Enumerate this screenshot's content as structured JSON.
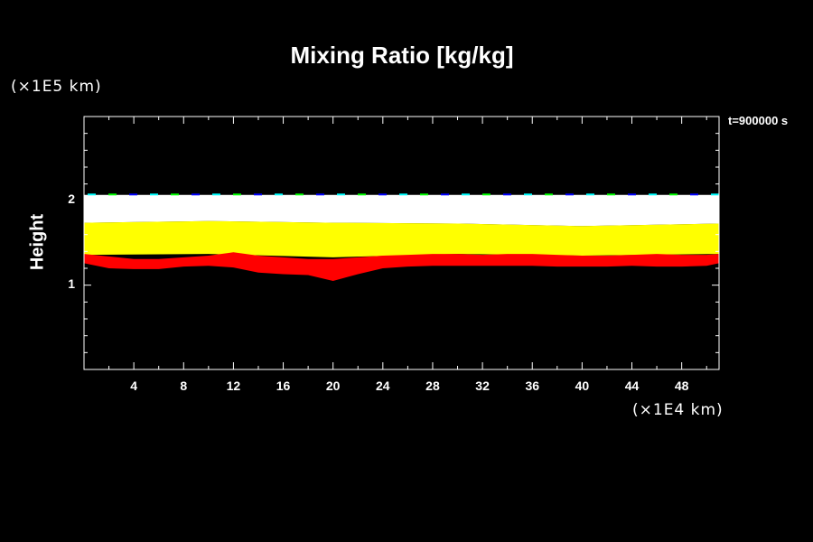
{
  "chart_data": {
    "type": "heatmap",
    "title": "Mixing Ratio [kg/kg]",
    "ylabel": "Height",
    "y_unit_label": "(×1E5 km)",
    "x_unit_label": "(×1E4 km)",
    "time_label": "t=900000 s",
    "xlim": [
      0,
      51
    ],
    "ylim": [
      0,
      3
    ],
    "x_ticks": [
      4,
      8,
      12,
      16,
      20,
      24,
      28,
      32,
      36,
      40,
      44,
      48
    ],
    "y_ticks": [
      1,
      2
    ],
    "x_minor_step": 2,
    "y_minor_step": 0.2,
    "colors": {
      "background": "#000000",
      "white_band": "#ffffff",
      "yellow_band": "#ffff00",
      "red_band": "#ff0000",
      "top_fringe": [
        "#00ffff",
        "#00ff00",
        "#0000ff"
      ]
    },
    "bands": [
      {
        "color": "white_band",
        "x": [
          0,
          10,
          20,
          30,
          40,
          51
        ],
        "top": [
          2.07,
          2.07,
          2.07,
          2.07,
          2.07,
          2.07
        ],
        "bottom": [
          1.74,
          1.76,
          1.74,
          1.73,
          1.7,
          1.73
        ]
      },
      {
        "color": "yellow_band",
        "x": [
          0,
          10,
          20,
          30,
          40,
          51
        ],
        "top": [
          1.74,
          1.76,
          1.74,
          1.73,
          1.7,
          1.73
        ],
        "bottom": [
          1.36,
          1.37,
          1.33,
          1.37,
          1.35,
          1.37
        ]
      },
      {
        "color": "red_band",
        "x": [
          0,
          2,
          4,
          6,
          8,
          10,
          12,
          14,
          16,
          18,
          20,
          22,
          24,
          26,
          28,
          30,
          32,
          34,
          36,
          38,
          40,
          42,
          44,
          46,
          48,
          50,
          51
        ],
        "top": [
          1.37,
          1.34,
          1.31,
          1.31,
          1.33,
          1.35,
          1.39,
          1.35,
          1.33,
          1.31,
          1.31,
          1.33,
          1.35,
          1.36,
          1.37,
          1.37,
          1.36,
          1.37,
          1.37,
          1.36,
          1.35,
          1.35,
          1.36,
          1.37,
          1.36,
          1.36,
          1.37
        ],
        "bottom": [
          1.26,
          1.2,
          1.19,
          1.19,
          1.22,
          1.23,
          1.21,
          1.15,
          1.13,
          1.12,
          1.05,
          1.13,
          1.2,
          1.22,
          1.23,
          1.23,
          1.23,
          1.23,
          1.23,
          1.22,
          1.22,
          1.22,
          1.23,
          1.22,
          1.22,
          1.23,
          1.26
        ]
      }
    ]
  }
}
